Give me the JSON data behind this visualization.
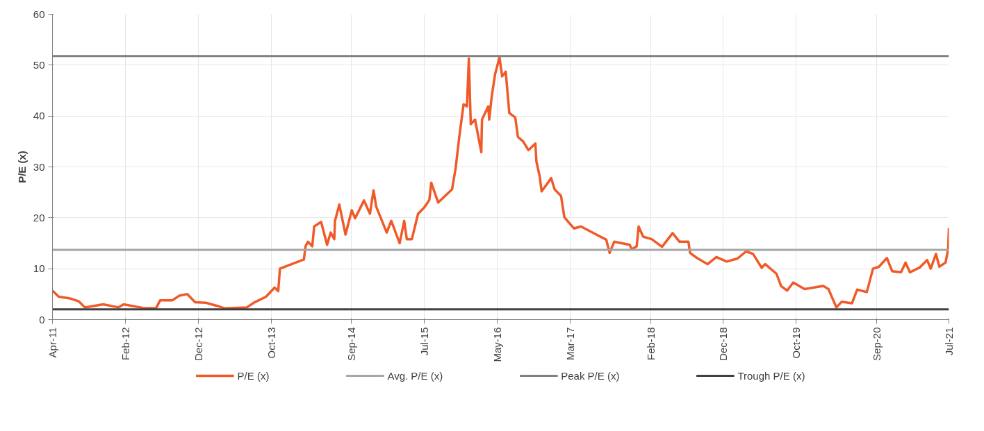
{
  "chart_data": {
    "type": "line",
    "ylabel": "P/E (x)",
    "xlim": [
      "2011-04-01",
      "2021-07-01"
    ],
    "ylim": [
      0,
      60
    ],
    "xticks": [
      {
        "value": "2011-04-01",
        "label": "Apr-11"
      },
      {
        "value": "2012-02-01",
        "label": "Feb-12"
      },
      {
        "value": "2012-12-01",
        "label": "Dec-12"
      },
      {
        "value": "2013-10-01",
        "label": "Oct-13"
      },
      {
        "value": "2014-09-01",
        "label": "Sep-14"
      },
      {
        "value": "2015-07-01",
        "label": "Jul-15"
      },
      {
        "value": "2016-05-01",
        "label": "May-16"
      },
      {
        "value": "2017-03-01",
        "label": "Mar-17"
      },
      {
        "value": "2018-02-01",
        "label": "Feb-18"
      },
      {
        "value": "2018-12-01",
        "label": "Dec-18"
      },
      {
        "value": "2019-10-01",
        "label": "Oct-19"
      },
      {
        "value": "2020-09-01",
        "label": "Sep-20"
      },
      {
        "value": "2021-07-01",
        "label": "Jul-21"
      }
    ],
    "yticks": [
      0,
      10,
      20,
      30,
      40,
      50,
      60
    ],
    "grid": true,
    "legend": "bottom",
    "marker": "none",
    "line_style": "solid",
    "series": [
      {
        "name": "P/E (x)",
        "color": "#f05a28",
        "x": [
          "2011-04-01",
          "2011-04-27",
          "2011-06-10",
          "2011-07-20",
          "2011-08-14",
          "2011-10-30",
          "2012-01-01",
          "2012-01-23",
          "2012-04-12",
          "2012-06-06",
          "2012-06-24",
          "2012-08-14",
          "2012-09-12",
          "2012-10-15",
          "2012-11-17",
          "2013-01-01",
          "2013-02-17",
          "2013-03-21",
          "2013-06-21",
          "2013-07-23",
          "2013-09-09",
          "2013-10-15",
          "2013-10-30",
          "2013-11-06",
          "2013-12-13",
          "2014-02-14",
          "2014-02-21",
          "2014-03-03",
          "2014-03-21",
          "2014-03-29",
          "2014-04-27",
          "2014-05-22",
          "2014-06-06",
          "2014-06-21",
          "2014-06-24",
          "2014-07-12",
          "2014-08-07",
          "2014-09-02",
          "2014-09-16",
          "2014-10-23",
          "2014-11-17",
          "2014-12-02",
          "2014-12-13",
          "2015-01-26",
          "2015-02-14",
          "2015-03-21",
          "2015-04-09",
          "2015-04-20",
          "2015-05-11",
          "2015-06-06",
          "2015-07-01",
          "2015-07-23",
          "2015-07-31",
          "2015-08-29",
          "2015-10-26",
          "2015-11-10",
          "2015-11-25",
          "2015-12-13",
          "2015-12-27",
          "2016-01-04",
          "2016-01-12",
          "2016-01-30",
          "2016-02-25",
          "2016-02-28",
          "2016-03-25",
          "2016-03-29",
          "2016-04-09",
          "2016-04-23",
          "2016-05-11",
          "2016-05-22",
          "2016-06-06",
          "2016-06-21",
          "2016-07-16",
          "2016-07-27",
          "2016-08-18",
          "2016-09-09",
          "2016-10-08",
          "2016-10-12",
          "2016-10-26",
          "2016-11-03",
          "2016-12-13",
          "2016-12-27",
          "2017-01-23",
          "2017-02-06",
          "2017-03-18",
          "2017-04-16",
          "2017-06-24",
          "2017-07-31",
          "2017-08-14",
          "2017-09-02",
          "2017-11-06",
          "2017-11-14",
          "2017-12-05",
          "2017-12-13",
          "2018-01-01",
          "2018-02-06",
          "2018-03-21",
          "2018-05-04",
          "2018-06-02",
          "2018-07-09",
          "2018-07-16",
          "2018-08-14",
          "2018-09-27",
          "2018-11-03",
          "2018-12-16",
          "2019-01-30",
          "2019-03-07",
          "2019-04-05",
          "2019-05-11",
          "2019-05-26",
          "2019-07-12",
          "2019-07-31",
          "2019-08-25",
          "2019-09-20",
          "2019-11-06",
          "2020-01-23",
          "2020-02-14",
          "2020-03-18",
          "2020-04-09",
          "2020-05-22",
          "2020-06-13",
          "2020-07-23",
          "2020-08-18",
          "2020-09-12",
          "2020-10-15",
          "2020-11-06",
          "2020-12-13",
          "2021-01-01",
          "2021-01-19",
          "2021-02-28",
          "2021-04-01",
          "2021-04-16",
          "2021-05-08",
          "2021-05-22",
          "2021-06-17",
          "2021-06-28",
          "2021-07-01"
        ],
        "values": [
          5.7,
          4.5,
          4.2,
          3.6,
          2.4,
          3.0,
          2.4,
          3.0,
          2.3,
          2.2,
          3.8,
          3.8,
          4.7,
          5.0,
          3.4,
          3.3,
          2.7,
          2.2,
          2.4,
          3.4,
          4.5,
          6.3,
          5.6,
          10.0,
          10.7,
          11.8,
          14.4,
          15.3,
          14.4,
          18.3,
          19.2,
          14.7,
          17.1,
          15.8,
          19.4,
          22.6,
          16.7,
          21.5,
          19.9,
          23.4,
          20.8,
          25.4,
          22.2,
          17.1,
          19.4,
          15.0,
          19.4,
          15.8,
          15.8,
          20.8,
          22.0,
          23.5,
          26.9,
          23.0,
          25.6,
          29.8,
          35.9,
          42.3,
          41.9,
          51.3,
          38.4,
          39.3,
          32.9,
          39.3,
          41.9,
          39.3,
          44.0,
          48.3,
          51.5,
          47.8,
          48.7,
          40.6,
          39.7,
          35.9,
          35.0,
          33.3,
          34.6,
          31.1,
          28.1,
          25.2,
          27.8,
          25.6,
          24.3,
          20.1,
          17.9,
          18.3,
          16.6,
          15.7,
          13.1,
          15.3,
          14.7,
          13.8,
          14.4,
          18.3,
          16.3,
          15.8,
          14.3,
          17.0,
          15.3,
          15.3,
          13.1,
          12.1,
          10.9,
          12.3,
          11.4,
          12.0,
          13.4,
          12.9,
          10.2,
          10.9,
          9.0,
          6.6,
          5.7,
          7.3,
          6.0,
          6.6,
          6.0,
          2.4,
          3.5,
          3.2,
          5.9,
          5.4,
          10.0,
          10.4,
          12.1,
          9.5,
          9.3,
          11.2,
          9.3,
          10.2,
          11.7,
          10.0,
          12.9,
          10.4,
          11.2,
          13.9,
          18.0
        ]
      },
      {
        "name": "Avg. P/E (x)",
        "color": "#a6a6a6",
        "x": [
          "2011-04-01",
          "2021-07-01"
        ],
        "values": [
          13.7,
          13.7
        ]
      },
      {
        "name": "Peak P/E (x)",
        "color": "#808080",
        "x": [
          "2011-04-01",
          "2021-07-01"
        ],
        "values": [
          51.8,
          51.8
        ]
      },
      {
        "name": "Trough P/E (x)",
        "color": "#404040",
        "x": [
          "2011-04-01",
          "2021-07-01"
        ],
        "values": [
          2.0,
          2.0
        ]
      }
    ]
  }
}
